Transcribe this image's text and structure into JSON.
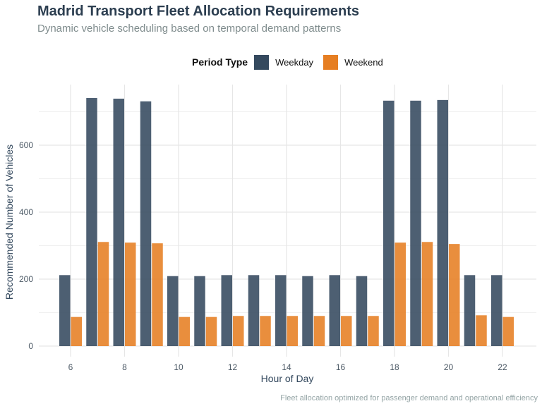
{
  "header": {
    "title": "Madrid Transport Fleet Allocation Requirements",
    "subtitle": "Dynamic vehicle scheduling based on temporal demand patterns"
  },
  "legend": {
    "title": "Period Type",
    "items": [
      {
        "label": "Weekday",
        "color": "#34495e"
      },
      {
        "label": "Weekend",
        "color": "#e67e22"
      }
    ]
  },
  "caption": "Fleet allocation optimized for passenger demand and operational efficiency",
  "chart_data": {
    "type": "bar",
    "title": "Madrid Transport Fleet Allocation Requirements",
    "subtitle": "Dynamic vehicle scheduling based on temporal demand patterns",
    "xlabel": "Hour of Day",
    "ylabel": "Recommended Number of Vehicles",
    "categories": [
      6,
      7,
      8,
      9,
      10,
      11,
      12,
      13,
      14,
      15,
      16,
      17,
      18,
      19,
      20,
      21,
      22
    ],
    "x_ticks": [
      6,
      8,
      10,
      12,
      14,
      16,
      18,
      20,
      22
    ],
    "y_ticks": [
      0,
      200,
      400,
      600
    ],
    "ylim": [
      0,
      780
    ],
    "grid": true,
    "legend_position": "top",
    "series": [
      {
        "name": "Weekday",
        "color": "#34495e",
        "values": [
          212,
          741,
          739,
          731,
          209,
          209,
          212,
          212,
          212,
          209,
          212,
          209,
          733,
          733,
          735,
          212,
          212
        ]
      },
      {
        "name": "Weekend",
        "color": "#e67e22",
        "values": [
          87,
          311,
          309,
          307,
          87,
          87,
          90,
          90,
          90,
          90,
          90,
          90,
          309,
          311,
          305,
          92,
          87
        ]
      }
    ]
  }
}
